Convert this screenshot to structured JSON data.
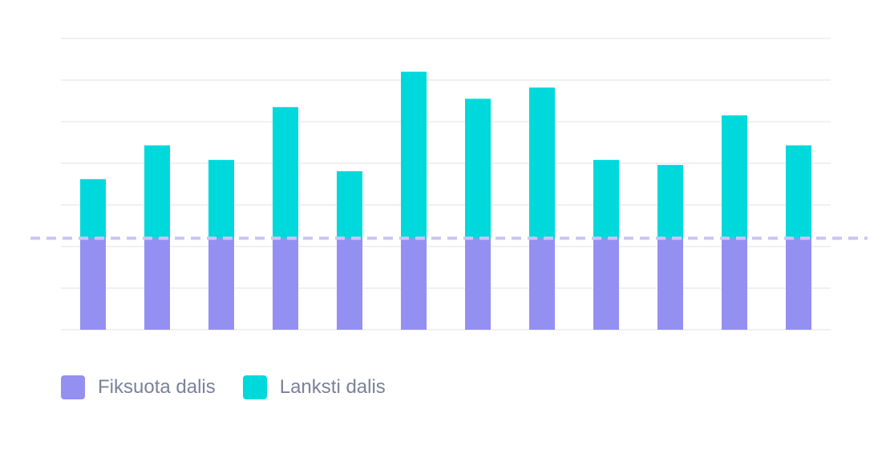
{
  "chart_data": {
    "type": "bar",
    "stacked": true,
    "categories": [
      "",
      "",
      "",
      "",
      "",
      "",
      "",
      "",
      "",
      "",
      "",
      ""
    ],
    "series": [
      {
        "name": "Fiksuota dalis",
        "color": "#9490f2",
        "values": [
          2.2,
          2.2,
          2.2,
          2.2,
          2.2,
          2.2,
          2.2,
          2.2,
          2.2,
          2.2,
          2.2,
          2.2
        ]
      },
      {
        "name": "Lanksti dalis",
        "color": "#00d9db",
        "values": [
          1.42,
          2.23,
          1.88,
          3.15,
          1.61,
          4.0,
          3.35,
          3.62,
          1.88,
          1.76,
          2.95,
          2.23
        ]
      }
    ],
    "ylim": [
      0,
      7
    ],
    "grid": true,
    "reference_line": {
      "value": 2.2,
      "color": "#c9c6f5",
      "style": "dashed"
    },
    "legend_position": "bottom-left"
  },
  "colors": {
    "grid": "#ececf2",
    "legend_text": "#7a819b"
  }
}
